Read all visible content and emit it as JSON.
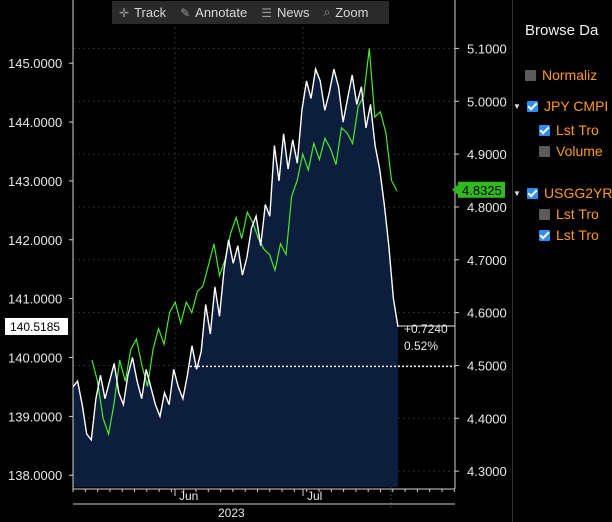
{
  "toolbar": {
    "items": [
      {
        "label": "Track",
        "icon": "crosshair-icon",
        "glyph": "✛"
      },
      {
        "label": "Annotate",
        "icon": "pencil-icon",
        "glyph": "✎"
      },
      {
        "label": "News",
        "icon": "news-icon",
        "glyph": "☰"
      },
      {
        "label": "Zoom",
        "icon": "magnifier-icon",
        "glyph": "⌕"
      }
    ]
  },
  "sidebar": {
    "title": "Browse Da",
    "normalize_label": "Normaliz",
    "series": [
      {
        "label": "JPY CMPI",
        "checked": true,
        "children": [
          {
            "label": "Lst Tro",
            "checked": true
          },
          {
            "label": "Volume",
            "checked": false
          }
        ]
      },
      {
        "label": "USGG2YR",
        "checked": true,
        "children": [
          {
            "label": "Lst Tro",
            "checked": false
          },
          {
            "label": "Lst Tro",
            "checked": true
          }
        ]
      }
    ]
  },
  "chart_data": {
    "type": "line",
    "left_axis": {
      "ylim": [
        137.8,
        145.7
      ],
      "ticks": [
        "138.0000",
        "139.0000",
        "140.0000",
        "141.0000",
        "142.0000",
        "143.0000",
        "144.0000",
        "145.0000"
      ]
    },
    "right_axis": {
      "ylim": [
        4.27,
        5.15
      ],
      "ticks": [
        "4.3000",
        "4.4000",
        "4.5000",
        "4.6000",
        "4.7000",
        "4.8000",
        "4.9000",
        "5.0000",
        "5.1000"
      ]
    },
    "x_ticks": [
      "Jun",
      "Jul"
    ],
    "year_label": "2023",
    "last_price_label": "140.5185",
    "last_yield_label": "4.8325",
    "change_abs": "+0.7240",
    "change_pct": "0.52%",
    "dotted_level": 139.85,
    "colors": {
      "price": "#ffffff",
      "area": "#0c1e3c",
      "yield": "#49e82a",
      "grid": "#2e2e2e",
      "badge_green": "#2fbb1e"
    },
    "series": [
      {
        "values": [
          139.5,
          139.6,
          139.2,
          138.7,
          138.6,
          139.3,
          139.7,
          139.3,
          139.6,
          139.9,
          139.4,
          139.2,
          139.7,
          140.0,
          139.6,
          139.3,
          139.8,
          139.5,
          139.2,
          139.0,
          139.4,
          139.2,
          139.8,
          139.5,
          139.3,
          139.7,
          140.2,
          139.8,
          140.1,
          140.9,
          140.4,
          141.2,
          140.7,
          141.5,
          142.0,
          141.6,
          141.9,
          141.4,
          141.7,
          142.2,
          142.4,
          141.9,
          142.6,
          142.4,
          143.6,
          143.0,
          143.8,
          143.2,
          143.7,
          143.3,
          144.2,
          144.7,
          144.4,
          144.9,
          144.7,
          144.2,
          144.5,
          144.9,
          144.6,
          144.0,
          144.4,
          144.8,
          144.3,
          144.6,
          143.9,
          144.3,
          143.6,
          143.2,
          142.6,
          141.9,
          141.0,
          140.52
        ]
      },
      {
        "values": [
          4.51,
          4.47,
          4.4,
          4.37,
          4.43,
          4.51,
          4.47,
          4.53,
          4.55,
          4.5,
          4.46,
          4.53,
          4.57,
          4.54,
          4.6,
          4.62,
          4.58,
          4.62,
          4.6,
          4.64,
          4.65,
          4.69,
          4.73,
          4.67,
          4.7,
          4.75,
          4.78,
          4.74,
          4.79,
          4.77,
          4.74,
          4.72,
          4.71,
          4.68,
          4.73,
          4.71,
          4.82,
          4.85,
          4.9,
          4.87,
          4.92,
          4.89,
          4.93,
          4.91,
          4.88,
          4.95,
          4.94,
          4.92,
          4.99,
          5.01,
          5.1,
          4.97,
          4.98,
          4.94,
          4.85,
          4.83
        ]
      }
    ]
  }
}
